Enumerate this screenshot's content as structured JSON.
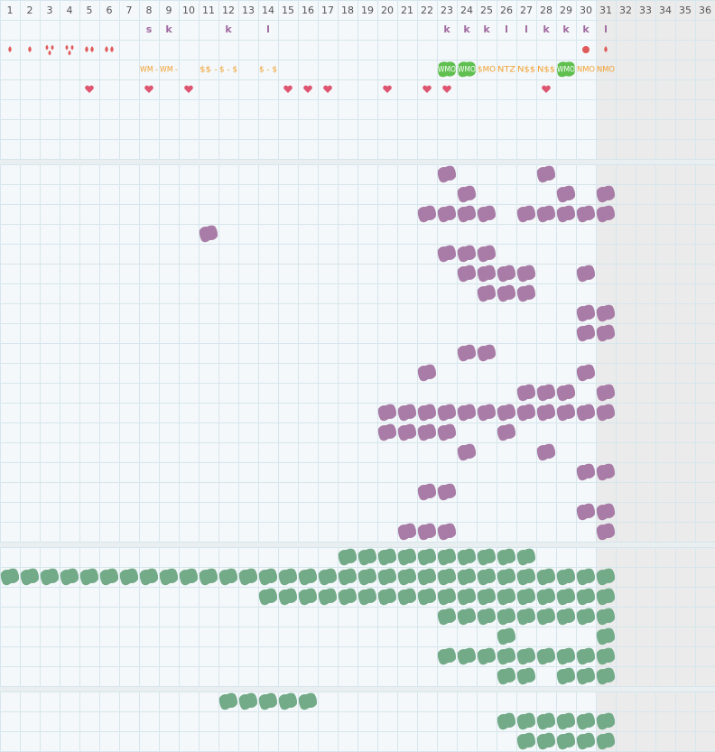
{
  "header": {
    "days": [
      1,
      2,
      3,
      4,
      5,
      6,
      7,
      8,
      9,
      10,
      11,
      12,
      13,
      14,
      15,
      16,
      17,
      18,
      19,
      20,
      21,
      22,
      23,
      24,
      25,
      26,
      27,
      28,
      29,
      30,
      31,
      32,
      33,
      34,
      35,
      36
    ]
  },
  "top": {
    "letters": [
      {
        "day": 8,
        "text": "s"
      },
      {
        "day": 9,
        "text": "k"
      },
      {
        "day": 12,
        "text": "k"
      },
      {
        "day": 14,
        "text": "l"
      },
      {
        "day": 23,
        "text": "k"
      },
      {
        "day": 24,
        "text": "k"
      },
      {
        "day": 25,
        "text": "k"
      },
      {
        "day": 26,
        "text": "l"
      },
      {
        "day": 27,
        "text": "l"
      },
      {
        "day": 28,
        "text": "k"
      },
      {
        "day": 29,
        "text": "k"
      },
      {
        "day": 30,
        "text": "k"
      },
      {
        "day": 31,
        "text": "l"
      }
    ],
    "drops": [
      {
        "day": 1,
        "count": 1
      },
      {
        "day": 2,
        "count": 1
      },
      {
        "day": 3,
        "count": 3
      },
      {
        "day": 4,
        "count": 3
      },
      {
        "day": 5,
        "count": 2
      },
      {
        "day": 6,
        "count": 2
      },
      {
        "day": 31,
        "count": 1
      }
    ],
    "circle_days": [
      30
    ],
    "labels": [
      {
        "day": 8,
        "text": "WM -",
        "highlight": false
      },
      {
        "day": 9,
        "text": "WM -",
        "highlight": false
      },
      {
        "day": 11,
        "text": "$$ -",
        "highlight": false
      },
      {
        "day": 12,
        "text": "$ - $",
        "highlight": false
      },
      {
        "day": 14,
        "text": "$ - $",
        "highlight": false
      },
      {
        "day": 23,
        "text": "WMO",
        "highlight": true
      },
      {
        "day": 24,
        "text": "WMO",
        "highlight": true
      },
      {
        "day": 25,
        "text": "$MO",
        "highlight": false
      },
      {
        "day": 26,
        "text": "NTZ",
        "highlight": false
      },
      {
        "day": 27,
        "text": "N$$",
        "highlight": false
      },
      {
        "day": 28,
        "text": "N$$",
        "highlight": false
      },
      {
        "day": 29,
        "text": "WMO",
        "highlight": true
      },
      {
        "day": 30,
        "text": "NMO",
        "highlight": false
      },
      {
        "day": 31,
        "text": "NMO",
        "highlight": false
      }
    ],
    "hearts": [
      5,
      8,
      10,
      15,
      16,
      17,
      20,
      22,
      23,
      28
    ]
  },
  "sections": [
    {
      "color": "#a87ca6",
      "rows": [
        [
          23,
          28
        ],
        [
          24,
          29,
          31
        ],
        [
          22,
          23,
          24,
          25,
          27,
          28,
          29,
          30,
          31
        ],
        [
          11
        ],
        [
          23,
          24,
          25
        ],
        [
          24,
          25,
          26,
          27,
          30
        ],
        [
          25,
          26,
          27
        ],
        [
          30,
          31
        ],
        [
          30,
          31
        ],
        [
          24,
          25
        ],
        [
          22,
          30
        ],
        [
          27,
          28,
          29,
          31
        ],
        [
          20,
          21,
          22,
          23,
          24,
          25,
          26,
          27,
          28,
          29,
          30,
          31
        ],
        [
          20,
          21,
          22,
          23,
          26
        ],
        [
          24,
          28
        ],
        [
          30,
          31
        ],
        [
          22,
          23
        ],
        [
          30,
          31
        ],
        [
          21,
          22,
          23,
          31
        ]
      ]
    },
    {
      "color": "#73aa88",
      "rows": [
        [
          18,
          19,
          20,
          21,
          22,
          23,
          24,
          25,
          26,
          27
        ],
        [
          1,
          2,
          3,
          4,
          5,
          6,
          7,
          8,
          9,
          10,
          11,
          12,
          13,
          14,
          15,
          16,
          17,
          18,
          19,
          20,
          21,
          22,
          23,
          24,
          25,
          26,
          27,
          28,
          29,
          30,
          31
        ],
        [
          14,
          15,
          16,
          17,
          18,
          19,
          20,
          21,
          22,
          23,
          24,
          25,
          26,
          27,
          28,
          29,
          30,
          31
        ],
        [
          23,
          24,
          25,
          26,
          27,
          28,
          29,
          30,
          31
        ],
        [
          26,
          31
        ],
        [
          23,
          24,
          25,
          26,
          27,
          28,
          29,
          30,
          31
        ],
        [
          26,
          27,
          29,
          30,
          31
        ]
      ]
    },
    {
      "color": "#73aa88",
      "rows": [
        [
          12,
          13,
          14,
          15,
          16
        ],
        [
          26,
          27,
          28,
          29,
          30,
          31
        ],
        [
          27,
          28,
          29,
          30,
          31
        ]
      ]
    }
  ]
}
